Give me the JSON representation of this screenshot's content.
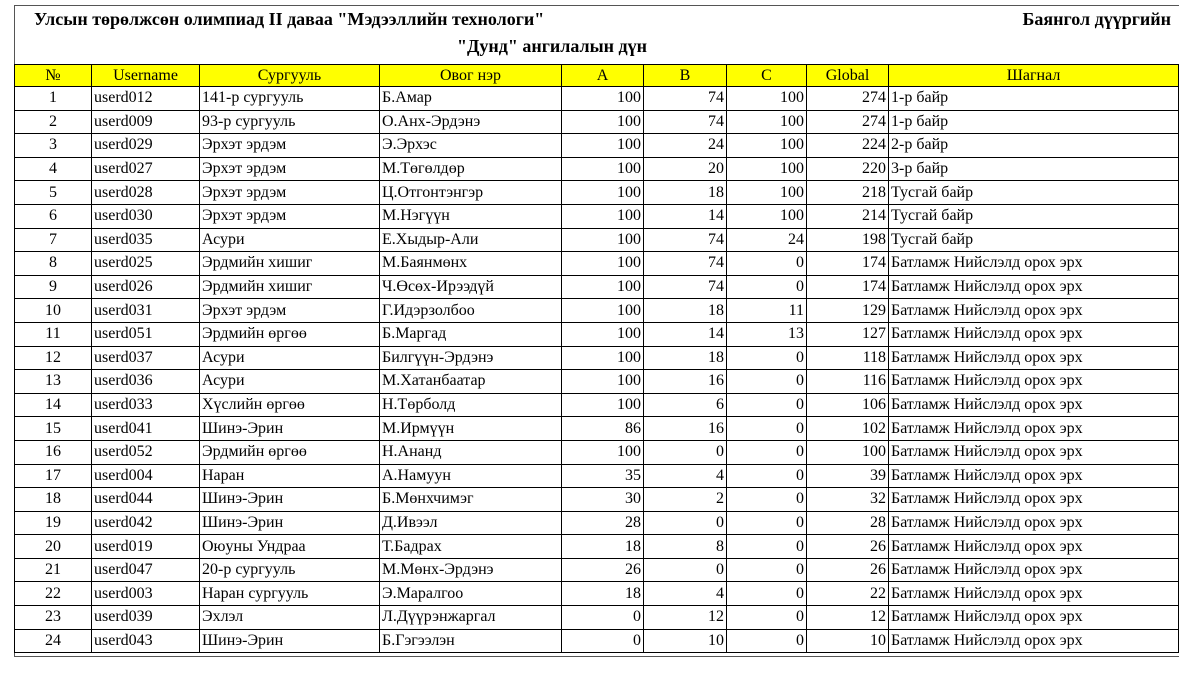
{
  "header": {
    "title": "Улсын төрөлжсөн олимпиад II даваа \"Мэдээллийн технологи\"",
    "district": "Баянгол дүүргийн",
    "subtitle": "\"Дунд\" ангилалын дүн"
  },
  "columns": [
    "№",
    "Username",
    "Сургууль",
    "Овог нэр",
    "A",
    "B",
    "C",
    "Global",
    "Шагнал"
  ],
  "rows": [
    [
      "1",
      "userd012",
      "141-р сургууль",
      "Б.Амар",
      "100",
      "74",
      "100",
      "274",
      "1-р байр"
    ],
    [
      "2",
      "userd009",
      "93-р сургууль",
      "О.Анх-Эрдэнэ",
      "100",
      "74",
      "100",
      "274",
      "1-р байр"
    ],
    [
      "3",
      "userd029",
      "Эрхэт эрдэм",
      "Э.Эрхэс",
      "100",
      "24",
      "100",
      "224",
      "2-р байр"
    ],
    [
      "4",
      "userd027",
      "Эрхэт эрдэм",
      "М.Төгөлдөр",
      "100",
      "20",
      "100",
      "220",
      "3-р байр"
    ],
    [
      "5",
      "userd028",
      "Эрхэт эрдэм",
      "Ц.Отгонтэнгэр",
      "100",
      "18",
      "100",
      "218",
      "Тусгай байр"
    ],
    [
      "6",
      "userd030",
      "Эрхэт эрдэм",
      "М.Нэгүүн",
      "100",
      "14",
      "100",
      "214",
      "Тусгай байр"
    ],
    [
      "7",
      "userd035",
      "Асури",
      "Е.Хыдыр-Али",
      "100",
      "74",
      "24",
      "198",
      "Тусгай байр"
    ],
    [
      "8",
      "userd025",
      "Эрдмийн хишиг",
      "М.Баянмөнх",
      "100",
      "74",
      "0",
      "174",
      "Батламж Нийслэлд орох эрх"
    ],
    [
      "9",
      "userd026",
      "Эрдмийн хишиг",
      "Ч.Өсөх-Ирээдүй",
      "100",
      "74",
      "0",
      "174",
      "Батламж Нийслэлд орох эрх"
    ],
    [
      "10",
      "userd031",
      "Эрхэт эрдэм",
      "Г.Идэрзолбоо",
      "100",
      "18",
      "11",
      "129",
      "Батламж Нийслэлд орох эрх"
    ],
    [
      "11",
      "userd051",
      "Эрдмийн өргөө",
      "Б.Маргад",
      "100",
      "14",
      "13",
      "127",
      "Батламж Нийслэлд орох эрх"
    ],
    [
      "12",
      "userd037",
      "Асури",
      "Билгүүн-Эрдэнэ",
      "100",
      "18",
      "0",
      "118",
      "Батламж Нийслэлд орох эрх"
    ],
    [
      "13",
      "userd036",
      "Асури",
      "М.Хатанбаатар",
      "100",
      "16",
      "0",
      "116",
      "Батламж Нийслэлд орох эрх"
    ],
    [
      "14",
      "userd033",
      "Хүслийн өргөө",
      "Н.Төрболд",
      "100",
      "6",
      "0",
      "106",
      "Батламж Нийслэлд орох эрх"
    ],
    [
      "15",
      "userd041",
      "Шинэ-Эрин",
      "М.Ирмүүн",
      "86",
      "16",
      "0",
      "102",
      "Батламж Нийслэлд орох эрх"
    ],
    [
      "16",
      "userd052",
      "Эрдмийн өргөө",
      "Н.Ананд",
      "100",
      "0",
      "0",
      "100",
      "Батламж Нийслэлд орох эрх"
    ],
    [
      "17",
      "userd004",
      "Наран",
      "А.Намуун",
      "35",
      "4",
      "0",
      "39",
      "Батламж Нийслэлд орох эрх"
    ],
    [
      "18",
      "userd044",
      "Шинэ-Эрин",
      "Б.Мөнхчимэг",
      "30",
      "2",
      "0",
      "32",
      "Батламж Нийслэлд орох эрх"
    ],
    [
      "19",
      "userd042",
      "Шинэ-Эрин",
      "Д.Ивээл",
      "28",
      "0",
      "0",
      "28",
      "Батламж Нийслэлд орох эрх"
    ],
    [
      "20",
      "userd019",
      "Оюуны Ундраа",
      "Т.Бадрах",
      "18",
      "8",
      "0",
      "26",
      "Батламж Нийслэлд орох эрх"
    ],
    [
      "21",
      "userd047",
      "20-р сургууль",
      "М.Мөнх-Эрдэнэ",
      "26",
      "0",
      "0",
      "26",
      "Батламж Нийслэлд орох эрх"
    ],
    [
      "22",
      "userd003",
      "Наран сургууль",
      "Э.Маралгоо",
      "18",
      "4",
      "0",
      "22",
      "Батламж Нийслэлд орох эрх"
    ],
    [
      "23",
      "userd039",
      "Эхлэл",
      "Л.Дүүрэнжаргал",
      "0",
      "12",
      "0",
      "12",
      "Батламж Нийслэлд орох эрх"
    ],
    [
      "24",
      "userd043",
      "Шинэ-Эрин",
      "Б.Гэгээлэн",
      "0",
      "10",
      "0",
      "10",
      "Батламж Нийслэлд орох эрх"
    ]
  ],
  "colors": {
    "header_bg": "#ffff00"
  }
}
